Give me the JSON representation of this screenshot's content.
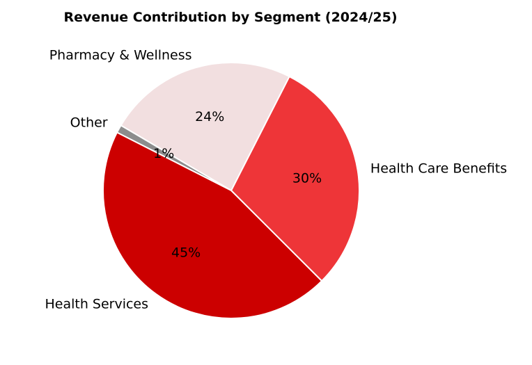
{
  "chart_data": {
    "type": "pie",
    "title": "Revenue Contribution by Segment (2024/25)",
    "slices": [
      {
        "label": "Health Care Benefits",
        "value": 30,
        "pct_label": "30%",
        "color": "#ee3538"
      },
      {
        "label": "Pharmacy & Wellness",
        "value": 24,
        "pct_label": "24%",
        "color": "#f2dfe0"
      },
      {
        "label": "Other",
        "value": 1,
        "pct_label": "1%",
        "color": "#8c8c8c"
      },
      {
        "label": "Health Services",
        "value": 45,
        "pct_label": "45%",
        "color": "#cc0000"
      }
    ],
    "start_angle_deg": -45,
    "direction": "counterclockwise",
    "edge_color": "#ffffff"
  }
}
